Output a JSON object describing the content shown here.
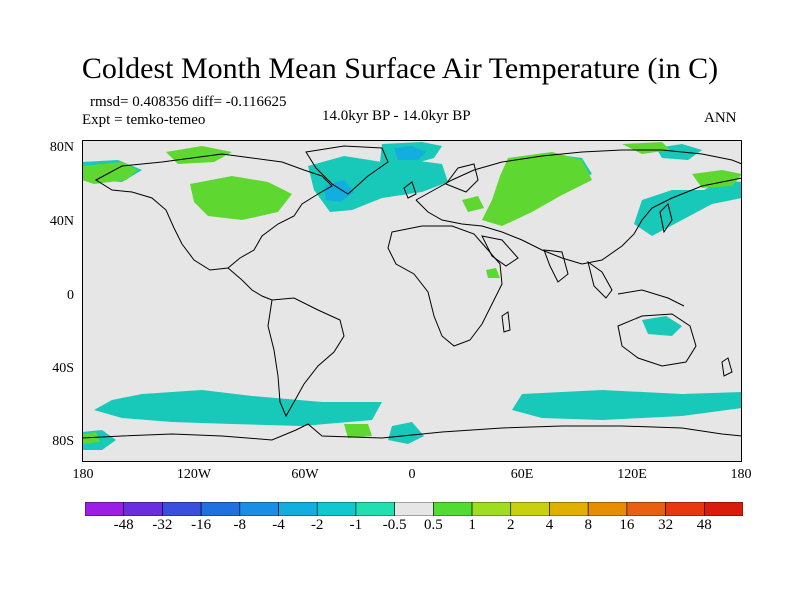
{
  "title": "Coldest Month Mean Surface Air Temperature (in C)",
  "stats_line": "rmsd= 0.408356 diff= -0.116625",
  "experiment": "Expt = temko-temeo",
  "period": "14.0kyr BP - 14.0kyr BP",
  "season": "ANN",
  "y_ticks": [
    "80N",
    "40N",
    "0",
    "40S",
    "80S"
  ],
  "x_ticks": [
    "180",
    "120W",
    "60W",
    "0",
    "60E",
    "120E",
    "180"
  ],
  "colorbar": {
    "labels": [
      "-48",
      "-32",
      "-16",
      "-8",
      "-4",
      "-2",
      "-1",
      "-0.5",
      "0.5",
      "1",
      "2",
      "4",
      "8",
      "16",
      "32",
      "48"
    ],
    "colors": [
      "#9a1ee6",
      "#6a2ee0",
      "#3a4ee0",
      "#1f70e0",
      "#1a8ee6",
      "#12aee0",
      "#10c8d0",
      "#20e0b0",
      "#e6e6e6",
      "#50dc30",
      "#a0dc20",
      "#c8d010",
      "#e0b000",
      "#e88c00",
      "#e86010",
      "#e83810",
      "#d81e0a"
    ]
  },
  "colors": {
    "ocean_land_background": "#e6e6e6",
    "cool_anomaly": "#18c8b8",
    "warm_anomaly": "#5ed830",
    "coast": "#000000"
  }
}
